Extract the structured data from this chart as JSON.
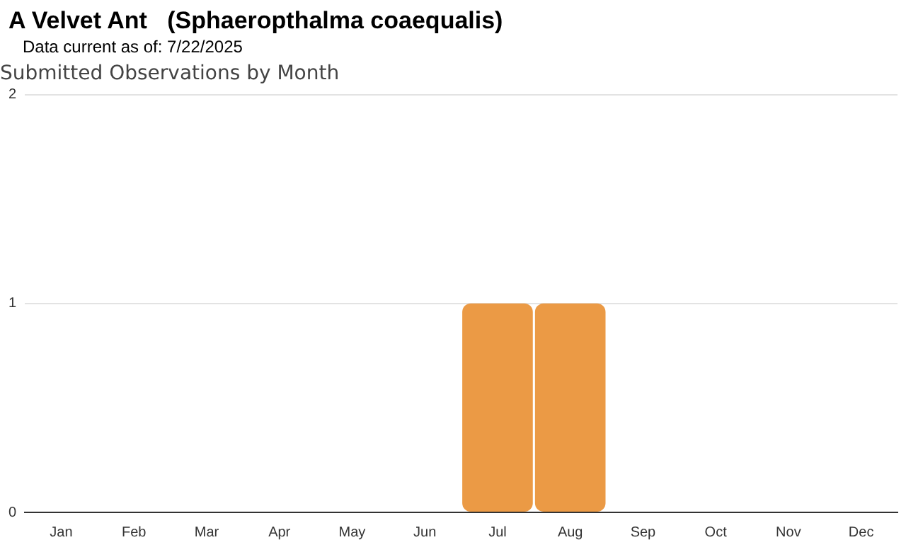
{
  "chart_data": {
    "type": "bar",
    "title": "A Velvet Ant   (Sphaeropthalma coaequalis)",
    "subtitle": "Data current as of: 7/22/2025",
    "annotations": [
      "Submitted Observations by Month"
    ],
    "categories": [
      "Jan",
      "Feb",
      "Mar",
      "Apr",
      "May",
      "Jun",
      "Jul",
      "Aug",
      "Sep",
      "Oct",
      "Nov",
      "Dec"
    ],
    "values": [
      0,
      0,
      0,
      0,
      0,
      0,
      1,
      1,
      0,
      0,
      0,
      0
    ],
    "color": "#eb9a45",
    "ylim": [
      0,
      2
    ],
    "yticks": [
      0,
      1,
      2
    ],
    "grid": "y",
    "legend": false
  }
}
